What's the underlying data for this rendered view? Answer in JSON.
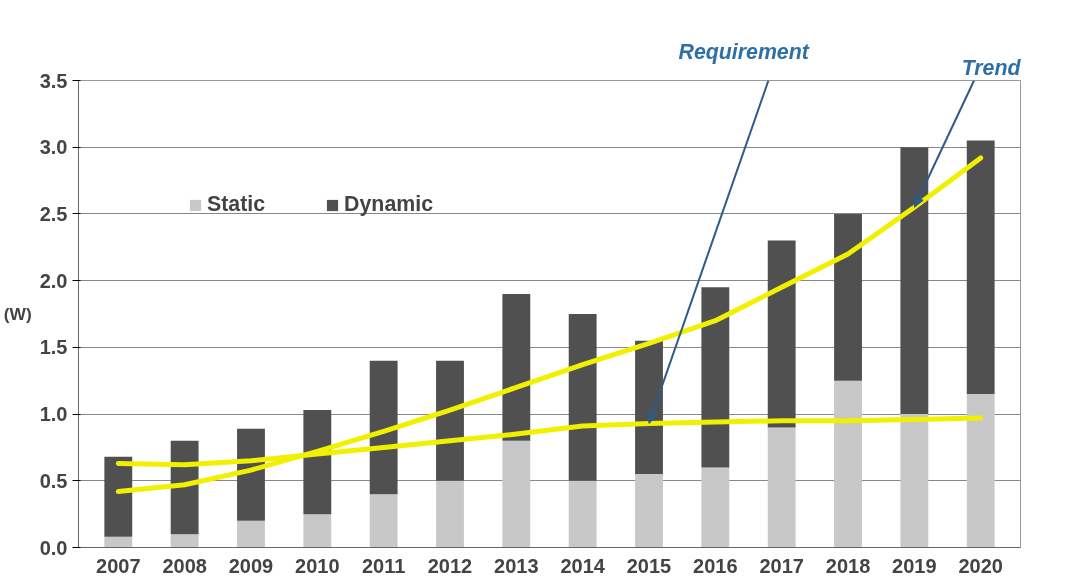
{
  "chart_data": {
    "type": "bar",
    "stacked": true,
    "ylabel": "(W)",
    "categories": [
      "2007",
      "2008",
      "2009",
      "2010",
      "2011",
      "2012",
      "2013",
      "2014",
      "2015",
      "2016",
      "2017",
      "2018",
      "2019",
      "2020"
    ],
    "series": [
      {
        "name": "Static",
        "color": "#c8c8c8",
        "values": [
          0.08,
          0.1,
          0.2,
          0.25,
          0.4,
          0.5,
          0.8,
          0.5,
          0.55,
          0.6,
          0.9,
          1.25,
          1.0,
          1.15
        ]
      },
      {
        "name": "Dynamic",
        "color": "#505050",
        "values": [
          0.6,
          0.7,
          0.69,
          0.78,
          1.0,
          0.9,
          1.1,
          1.25,
          1.0,
          1.35,
          1.4,
          1.25,
          2.0,
          1.9
        ]
      },
      {
        "type": "line",
        "color": "#f0f000",
        "values": [
          0.42,
          0.47,
          0.58,
          0.72,
          0.87,
          1.03,
          1.2,
          1.37,
          1.53,
          1.7,
          1.95,
          2.2,
          2.55,
          2.92
        ]
      },
      {
        "type": "line",
        "color": "#f0f000",
        "values": [
          0.63,
          0.62,
          0.65,
          0.7,
          0.75,
          0.8,
          0.85,
          0.91,
          0.93,
          0.94,
          0.95,
          0.95,
          0.96,
          0.97
        ]
      }
    ],
    "annotations": [
      {
        "text": "Requirement",
        "x": "2015",
        "y": 0.93
      },
      {
        "text": "Trend",
        "x": "2019",
        "y": 2.55
      }
    ],
    "ylim": [
      0,
      3.5
    ],
    "yticks": [
      {
        "value": 0,
        "label": "0.0"
      },
      0.5,
      {
        "value": 1,
        "label": "1.0"
      },
      1.5,
      {
        "value": 2,
        "label": "2.0"
      },
      2.5,
      {
        "value": 3,
        "label": "3.0"
      },
      3.5
    ],
    "grid": "y",
    "legend": "top left",
    "line_style": "solid"
  }
}
